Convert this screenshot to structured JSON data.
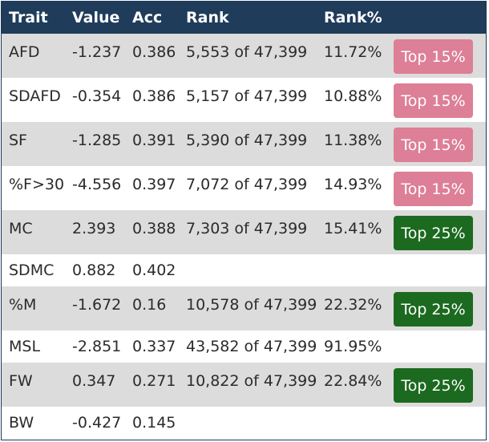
{
  "header": {
    "trait": "Trait",
    "value": "Value",
    "acc": "Acc",
    "rank": "Rank",
    "pct": "Rank%"
  },
  "rows": [
    {
      "trait": "AFD",
      "value": "-1.237",
      "acc": "0.386",
      "rank": "5,553 of 47,399",
      "pct": "11.72%",
      "badge": "Top 15%"
    },
    {
      "trait": "SDAFD",
      "value": "-0.354",
      "acc": "0.386",
      "rank": "5,157 of 47,399",
      "pct": "10.88%",
      "badge": "Top 15%"
    },
    {
      "trait": "SF",
      "value": "-1.285",
      "acc": "0.391",
      "rank": "5,390 of 47,399",
      "pct": "11.38%",
      "badge": "Top 15%"
    },
    {
      "trait": "%F>30",
      "value": "-4.556",
      "acc": "0.397",
      "rank": "7,072 of 47,399",
      "pct": "14.93%",
      "badge": "Top 15%"
    },
    {
      "trait": "MC",
      "value": "2.393",
      "acc": "0.388",
      "rank": "7,303 of 47,399",
      "pct": "15.41%",
      "badge": "Top 25%"
    },
    {
      "trait": "SDMC",
      "value": "0.882",
      "acc": "0.402",
      "rank": "",
      "pct": "",
      "badge": ""
    },
    {
      "trait": "%M",
      "value": "-1.672",
      "acc": "0.16",
      "rank": "10,578 of 47,399",
      "pct": "22.32%",
      "badge": "Top 25%"
    },
    {
      "trait": "MSL",
      "value": "-2.851",
      "acc": "0.337",
      "rank": "43,582 of 47,399",
      "pct": "91.95%",
      "badge": ""
    },
    {
      "trait": "FW",
      "value": "0.347",
      "acc": "0.271",
      "rank": "10,822 of 47,399",
      "pct": "22.84%",
      "badge": "Top 25%"
    },
    {
      "trait": "BW",
      "value": "-0.427",
      "acc": "0.145",
      "rank": "",
      "pct": "",
      "badge": ""
    }
  ],
  "colors": {
    "header_bg": "#1f3c5b",
    "row_shade": "#dcdcdc",
    "badge_top15": "#dd7f96",
    "badge_top25": "#1c6a1f"
  }
}
